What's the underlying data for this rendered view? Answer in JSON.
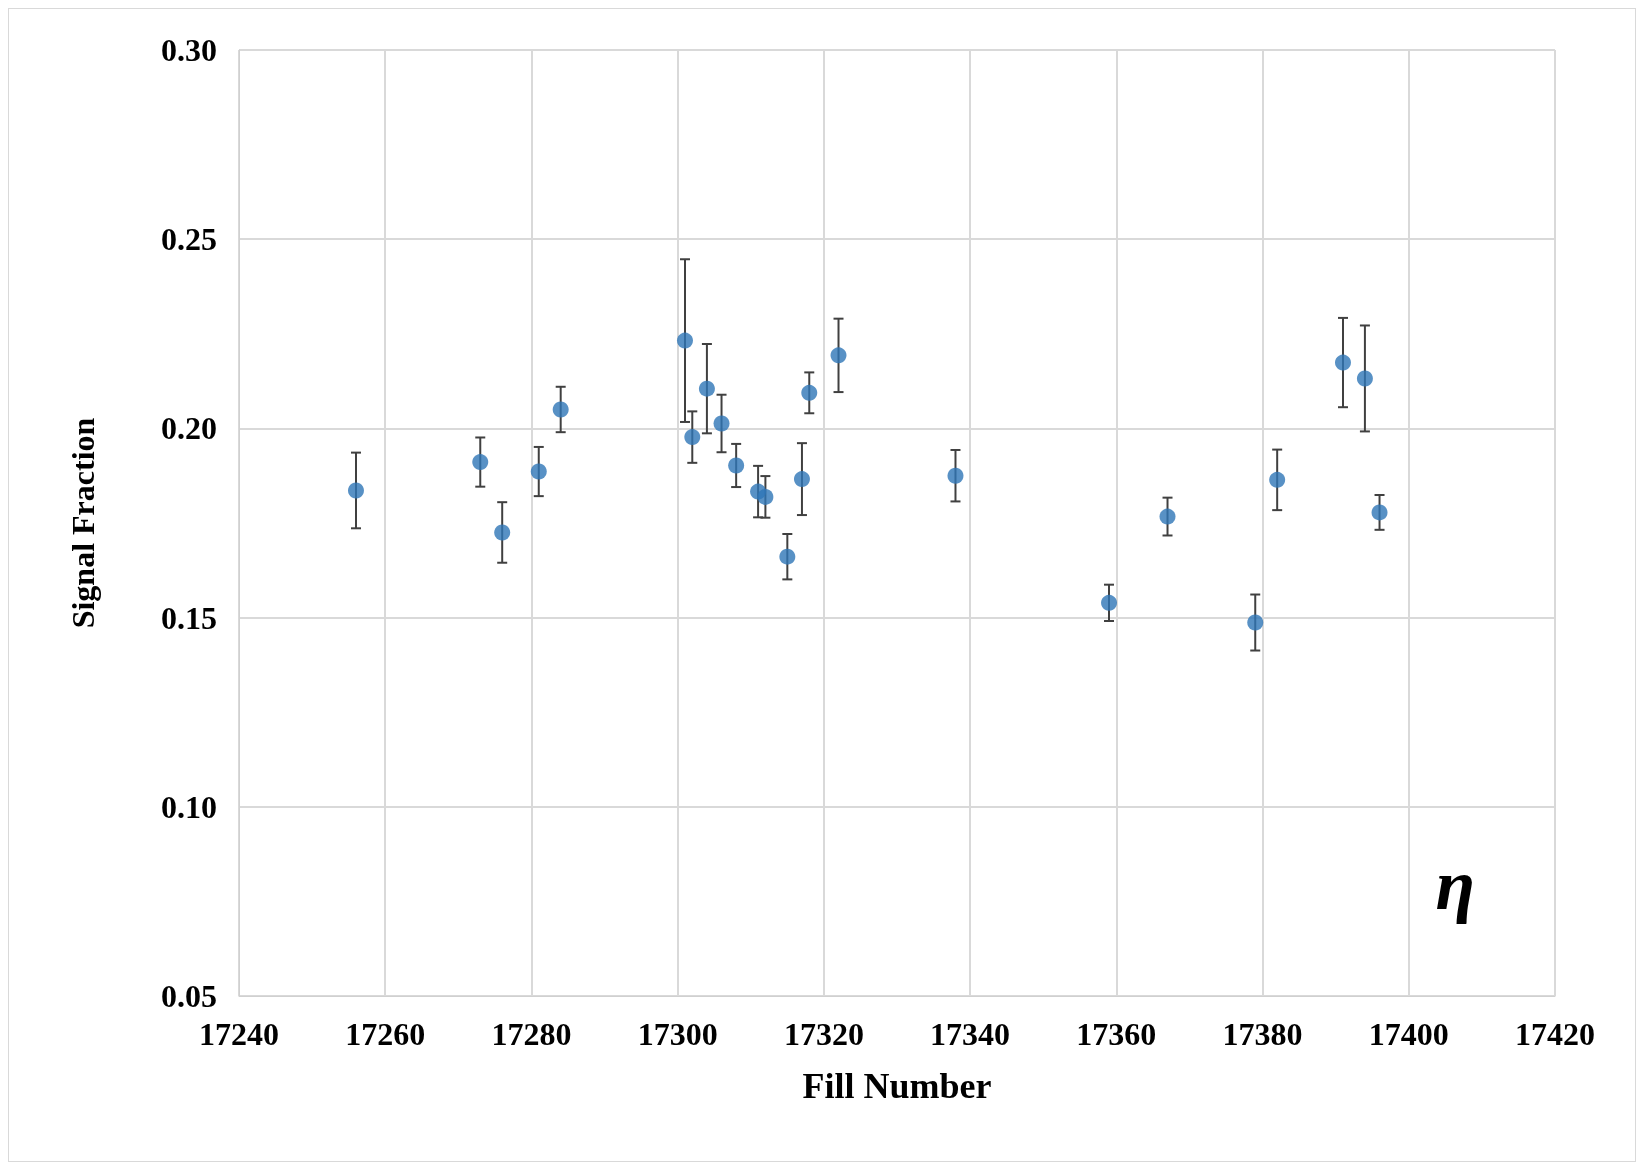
{
  "chart_data": {
    "type": "scatter",
    "xlabel": "Fill Number",
    "ylabel": "Signal Fraction",
    "annotations": [
      "η"
    ],
    "x": [
      17256,
      17273,
      17276,
      17281,
      17284,
      17301,
      17302,
      17304,
      17306,
      17308,
      17311,
      17312,
      17315,
      17317,
      17318,
      17322,
      17338,
      17359,
      17367,
      17379,
      17382,
      17391,
      17394,
      17396
    ],
    "values": [
      0.1836,
      0.1911,
      0.1725,
      0.1886,
      0.205,
      0.2232,
      0.1977,
      0.2105,
      0.2013,
      0.1902,
      0.1833,
      0.1819,
      0.1661,
      0.1866,
      0.2094,
      0.2193,
      0.1875,
      0.1539,
      0.1767,
      0.1487,
      0.1864,
      0.2174,
      0.2132,
      0.1778
    ],
    "errors": [
      0.01,
      0.0065,
      0.008,
      0.0065,
      0.006,
      0.0215,
      0.0068,
      0.0118,
      0.0076,
      0.0057,
      0.0068,
      0.0055,
      0.006,
      0.0095,
      0.0054,
      0.0097,
      0.0068,
      0.0048,
      0.005,
      0.0074,
      0.008,
      0.0118,
      0.014,
      0.0046
    ],
    "color": "#2e75b6",
    "marker": "circle",
    "xlim": [
      17240,
      17420
    ],
    "xticks": [
      17240,
      17260,
      17280,
      17300,
      17320,
      17340,
      17360,
      17380,
      17400,
      17420
    ],
    "ylim": [
      0.05,
      0.3
    ],
    "yticks": [
      0.05,
      {
        "value": 0.1,
        "label": "0.10"
      },
      0.15,
      {
        "value": 0.2,
        "label": "0.20"
      },
      0.25,
      {
        "value": 0.3,
        "label": "0.30"
      }
    ],
    "grid": true
  }
}
